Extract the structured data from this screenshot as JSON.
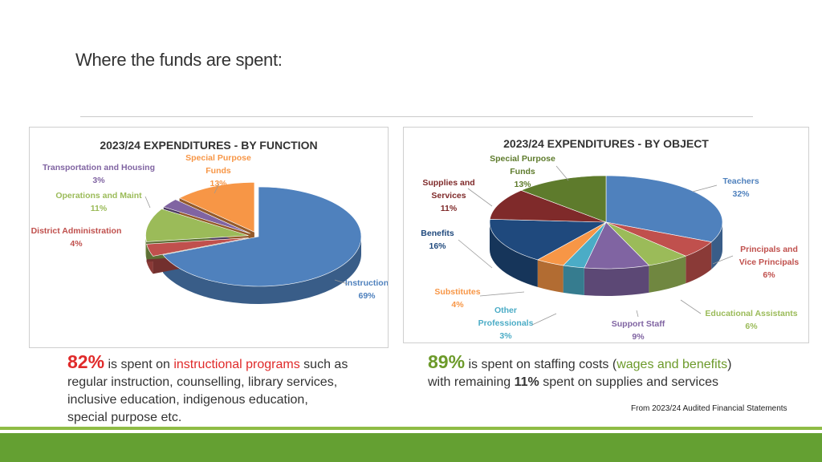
{
  "slide": {
    "title": "Where the funds are spent:",
    "source_note": "From 2023/24 Audited Financial Statements"
  },
  "captions": {
    "left": {
      "pct": "82%",
      "text1": " is spent on ",
      "highlight": "instructional programs",
      "text2": " such as regular instruction, counselling, library services, inclusive education, indigenous education, special purpose etc."
    },
    "right": {
      "pct": "89%",
      "text1": " is spent on staffing costs (",
      "highlight": "wages and benefits",
      "text2": ") with remaining ",
      "bold": "11%",
      "text3": " spent on supplies and services"
    }
  },
  "colors": {
    "blue": "#4f81bd",
    "red": "#c0504d",
    "green": "#9bbb59",
    "purple": "#8064a2",
    "cyan": "#4bacc6",
    "orange": "#f79646",
    "navy": "#1f497d",
    "maroon": "#7f2a2a",
    "olive": "#5e7b2c",
    "footer": "#64a032"
  },
  "chart_data": [
    {
      "type": "pie",
      "title": "2023/24 EXPENDITURES - BY FUNCTION",
      "series": [
        {
          "label": "Instruction",
          "value": 69,
          "value_label": "69%",
          "color": "#4f81bd"
        },
        {
          "label": "District Administration",
          "value": 4,
          "value_label": "4%",
          "color": "#c0504d"
        },
        {
          "label": "Operations and Maint",
          "value": 11,
          "value_label": "11%",
          "color": "#9bbb59"
        },
        {
          "label": "Transportation and Housing",
          "value": 3,
          "value_label": "3%",
          "color": "#8064a2"
        },
        {
          "label": "Special Purpose Funds",
          "value": 13,
          "value_label": "13%",
          "color": "#f79646"
        }
      ]
    },
    {
      "type": "pie",
      "title": "2023/24 EXPENDITURES - BY OBJECT",
      "series": [
        {
          "label": "Teachers",
          "value": 32,
          "value_label": "32%",
          "color": "#4f81bd"
        },
        {
          "label": "Principals and Vice Principals",
          "value": 6,
          "value_label": "6%",
          "color": "#c0504d"
        },
        {
          "label": "Educational Assistants",
          "value": 6,
          "value_label": "6%",
          "color": "#9bbb59"
        },
        {
          "label": "Support Staff",
          "value": 9,
          "value_label": "9%",
          "color": "#8064a2"
        },
        {
          "label": "Other Professionals",
          "value": 3,
          "value_label": "3%",
          "color": "#4bacc6"
        },
        {
          "label": "Substitutes",
          "value": 4,
          "value_label": "4%",
          "color": "#f79646"
        },
        {
          "label": "Benefits",
          "value": 16,
          "value_label": "16%",
          "color": "#1f497d"
        },
        {
          "label": "Supplies and Services",
          "value": 11,
          "value_label": "11%",
          "color": "#7f2a2a"
        },
        {
          "label": "Special Purpose Funds",
          "value": 13,
          "value_label": "13%",
          "color": "#5e7b2c"
        }
      ]
    }
  ]
}
